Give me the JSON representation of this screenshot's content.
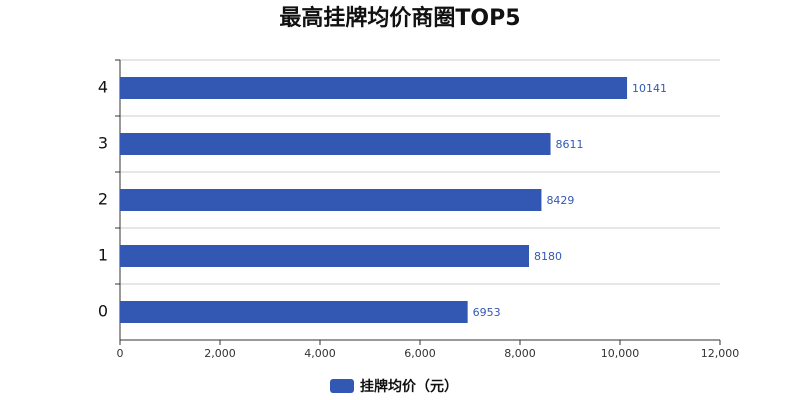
{
  "chart_data": {
    "type": "bar",
    "orientation": "horizontal",
    "title": "最高挂牌均价商圈TOP5",
    "categories": [
      "0",
      "1",
      "2",
      "3",
      "4"
    ],
    "series": [
      {
        "name": "挂牌均价（元）",
        "color": "#3358b4",
        "values": [
          6953,
          8180,
          8429,
          8611,
          10141
        ]
      }
    ],
    "xlim": [
      0,
      12000
    ],
    "xticks": [
      0,
      {
        "value": 2000,
        "label": "2,000"
      },
      {
        "value": 4000,
        "label": "4,000"
      },
      {
        "value": 6000,
        "label": "6,000"
      },
      {
        "value": 8000,
        "label": "8,000"
      },
      {
        "value": 10000,
        "label": "10,000"
      },
      {
        "value": 12000,
        "label": "12,000"
      }
    ]
  }
}
